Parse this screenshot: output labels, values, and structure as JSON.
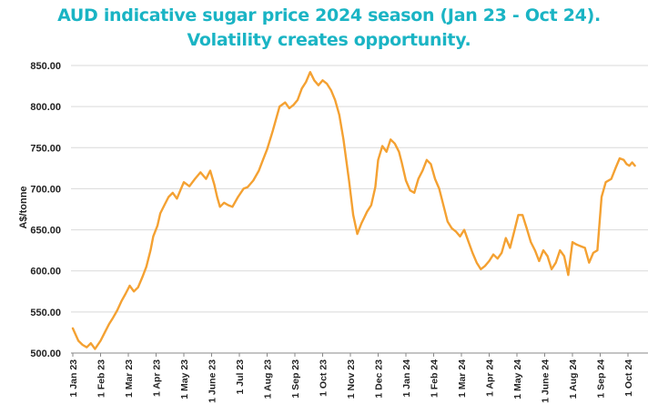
{
  "title_line1": "AUD indicative sugar price 2024 season (Jan 23 - Oct 24).",
  "title_line2": "Volatility creates opportunity.",
  "colors": {
    "title": "#1ab4c4",
    "line": "#f4a132",
    "grid": "#d9d9d9",
    "text": "#222222"
  },
  "chart_data": {
    "type": "line",
    "title": "AUD indicative sugar price 2024 season (Jan 23 - Oct 24). Volatility creates opportunity.",
    "xlabel": "",
    "ylabel": "A$/tonne",
    "ylim": [
      500,
      850
    ],
    "yticks": [
      500,
      550,
      600,
      650,
      700,
      750,
      800,
      850
    ],
    "ytick_labels": [
      "500.00",
      "550.00",
      "600.00",
      "650.00",
      "700.00",
      "750.00",
      "800.00",
      "850.00"
    ],
    "xlim": [
      0,
      21.2
    ],
    "xticks": [
      {
        "x": 0,
        "label": "1 Jan 23"
      },
      {
        "x": 1,
        "label": "1 Feb 23"
      },
      {
        "x": 2,
        "label": "1 Mar 23"
      },
      {
        "x": 3,
        "label": "1 Apr 23"
      },
      {
        "x": 4,
        "label": "1 May 23"
      },
      {
        "x": 5,
        "label": "1 June 23"
      },
      {
        "x": 6,
        "label": "1 Jul 23"
      },
      {
        "x": 7,
        "label": "1 Aug 23"
      },
      {
        "x": 8,
        "label": "1 Sep 23"
      },
      {
        "x": 9,
        "label": "1 Oct 23"
      },
      {
        "x": 10,
        "label": "1 Nov 23"
      },
      {
        "x": 11,
        "label": "1 Dec 23"
      },
      {
        "x": 12,
        "label": "1 Jan 24"
      },
      {
        "x": 13,
        "label": "1 Feb 24"
      },
      {
        "x": 14,
        "label": "1 Mar 24"
      },
      {
        "x": 15,
        "label": "1 Apr 24"
      },
      {
        "x": 16,
        "label": "1 May 24"
      },
      {
        "x": 17,
        "label": "1 June 24"
      },
      {
        "x": 18,
        "label": "1 Aug 24"
      },
      {
        "x": 19,
        "label": "1 Sep 24"
      },
      {
        "x": 20,
        "label": "1 Oct 24"
      }
    ],
    "grid": true,
    "series": [
      {
        "name": "AUD indicative sugar price",
        "x": [
          0,
          0.2,
          0.35,
          0.5,
          0.65,
          0.8,
          1.0,
          1.15,
          1.3,
          1.45,
          1.6,
          1.75,
          1.9,
          2.05,
          2.2,
          2.35,
          2.5,
          2.65,
          2.8,
          2.9,
          3.05,
          3.15,
          3.3,
          3.45,
          3.6,
          3.75,
          3.9,
          4.0,
          4.2,
          4.4,
          4.6,
          4.8,
          4.95,
          5.1,
          5.2,
          5.3,
          5.45,
          5.6,
          5.75,
          5.95,
          6.15,
          6.3,
          6.5,
          6.7,
          6.85,
          7.0,
          7.2,
          7.45,
          7.65,
          7.8,
          7.95,
          8.1,
          8.25,
          8.4,
          8.55,
          8.7,
          8.85,
          9.0,
          9.15,
          9.3,
          9.45,
          9.6,
          9.75,
          9.95,
          10.1,
          10.25,
          10.4,
          10.5,
          10.6,
          10.75,
          10.9,
          11.0,
          11.15,
          11.3,
          11.45,
          11.6,
          11.75,
          11.85,
          12.0,
          12.15,
          12.3,
          12.45,
          12.6,
          12.75,
          12.9,
          13.05,
          13.2,
          13.35,
          13.5,
          13.65,
          13.8,
          13.95,
          14.1,
          14.25,
          14.4,
          14.55,
          14.7,
          14.85,
          15.0,
          15.15,
          15.3,
          15.45,
          15.6,
          15.75,
          15.9,
          16.05,
          16.2,
          16.35,
          16.5,
          16.65,
          16.8,
          16.95,
          17.1,
          17.25,
          17.4,
          17.55,
          17.7,
          17.85,
          18.0,
          18.15,
          18.3,
          18.45,
          18.6,
          18.75,
          18.9,
          19.05,
          19.2,
          19.4,
          19.55,
          19.7,
          19.85,
          19.95,
          20.05,
          20.15,
          20.25
        ],
        "values": [
          530,
          515,
          510,
          507,
          512,
          505,
          515,
          525,
          535,
          543,
          552,
          563,
          572,
          582,
          575,
          580,
          592,
          605,
          625,
          642,
          655,
          670,
          680,
          690,
          695,
          688,
          700,
          708,
          703,
          712,
          720,
          712,
          722,
          705,
          690,
          678,
          683,
          680,
          678,
          690,
          700,
          702,
          710,
          722,
          735,
          748,
          770,
          800,
          805,
          798,
          802,
          808,
          822,
          830,
          842,
          832,
          826,
          832,
          828,
          820,
          808,
          790,
          760,
          710,
          668,
          645,
          658,
          665,
          672,
          680,
          702,
          735,
          752,
          745,
          760,
          755,
          745,
          732,
          710,
          698,
          695,
          712,
          722,
          735,
          730,
          712,
          700,
          680,
          660,
          652,
          648,
          642,
          650,
          636,
          622,
          610,
          602,
          606,
          612,
          620,
          615,
          622,
          640,
          628,
          648,
          668,
          668,
          652,
          635,
          625,
          612,
          625,
          618,
          602,
          610,
          625,
          618,
          595,
          635,
          632,
          630,
          628,
          610,
          622,
          625,
          690,
          708,
          712,
          725,
          737,
          735,
          730,
          728,
          732,
          728
        ]
      }
    ]
  }
}
